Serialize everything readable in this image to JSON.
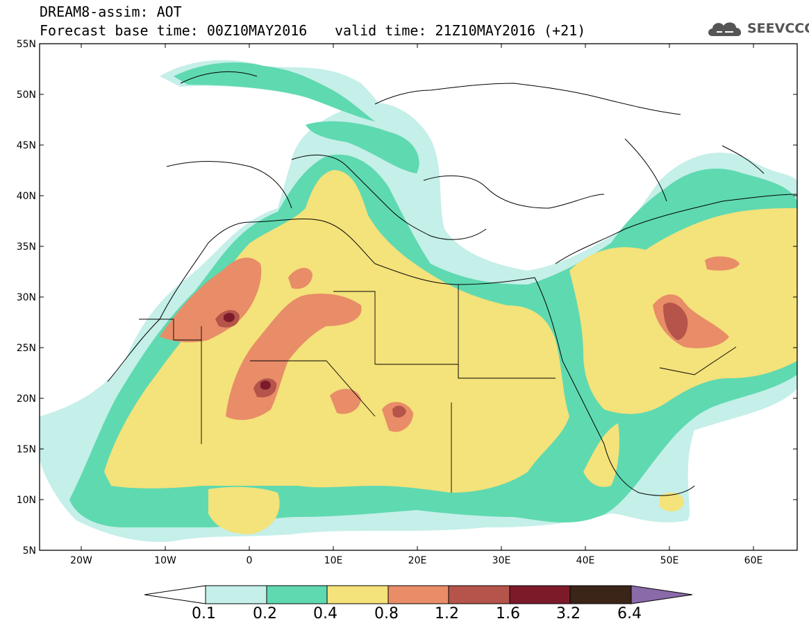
{
  "header": {
    "model_title": "DREAM8-assim: AOT",
    "base_time": "Forecast base time: 00Z10MAY2016",
    "valid_time": "valid time: 21Z10MAY2016 (+21)",
    "logo_text": "SEEVCCC",
    "logo_icon": "cloud-icon"
  },
  "map": {
    "lat_labels": [
      "55N",
      "50N",
      "45N",
      "40N",
      "35N",
      "30N",
      "25N",
      "20N",
      "15N",
      "10N",
      "5N"
    ],
    "lon_labels": [
      "20W",
      "10W",
      "0",
      "10E",
      "20E",
      "30E",
      "40E",
      "50E",
      "60E"
    ],
    "lon_range": [
      -25,
      65
    ],
    "lat_range": [
      5,
      55
    ],
    "background_color": "#ffffff",
    "coastline_color": "#000000"
  },
  "colorbar": {
    "labels": [
      "0.1",
      "0.2",
      "0.4",
      "0.8",
      "1.2",
      "1.6",
      "3.2",
      "6.4"
    ],
    "colors": [
      "#ffffff",
      "#c5efe9",
      "#5fd9b0",
      "#f4e27a",
      "#e88d68",
      "#b5544a",
      "#7c1a2a",
      "#3b2418",
      "#8a6aa8"
    ]
  },
  "chart_data": {
    "type": "heatmap",
    "title": "DREAM8-assim: AOT",
    "variable": "AOT",
    "levels": [
      0.1,
      0.2,
      0.4,
      0.8,
      1.2,
      1.6,
      3.2,
      6.4
    ],
    "xlabel": "",
    "ylabel": "",
    "xlim": [
      -25,
      65
    ],
    "ylim": [
      5,
      55
    ]
  }
}
